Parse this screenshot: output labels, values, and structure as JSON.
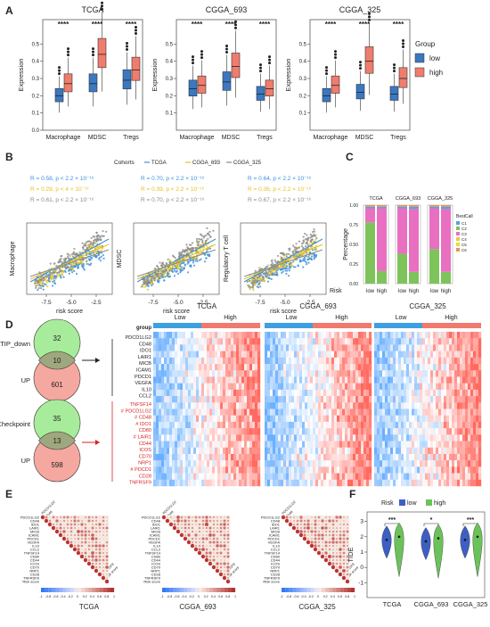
{
  "panels": {
    "A": {
      "label": "A",
      "ylabel": "Expression",
      "legend_title": "Group",
      "legend_items": [
        "low",
        "high"
      ],
      "colors": {
        "low": "#3b78c2",
        "high": "#ef7d6e"
      },
      "chart_data": [
        {
          "type": "box",
          "title": "TCGA",
          "categories": [
            "Macrophage",
            "MDSC",
            "Tregs"
          ],
          "sig": [
            "****",
            "****",
            "****"
          ],
          "yticks": [
            "0.0",
            "0.1",
            "0.2",
            "0.3",
            "0.4",
            "0.5"
          ],
          "ylim": [
            0,
            0.6
          ],
          "series": [
            {
              "name": "low",
              "median": [
                0.2,
                0.27,
                0.29
              ]
            },
            {
              "name": "high",
              "median": [
                0.27,
                0.44,
                0.35
              ]
            }
          ]
        },
        {
          "type": "box",
          "title": "CGGA_693",
          "categories": [
            "Macrophage",
            "MDSC",
            "Tregs"
          ],
          "sig": [
            "****",
            "****",
            "****"
          ],
          "yticks": [
            "0.1",
            "0.2",
            "0.3",
            "0.4",
            "0.5"
          ],
          "ylim": [
            0,
            0.6
          ],
          "series": [
            {
              "name": "low",
              "median": [
                0.24,
                0.28,
                0.21
              ]
            },
            {
              "name": "high",
              "median": [
                0.26,
                0.37,
                0.24
              ]
            }
          ]
        },
        {
          "type": "box",
          "title": "CGGA_325",
          "categories": [
            "Macrophage",
            "MDSC",
            "Tregs"
          ],
          "sig": [
            "****",
            "****",
            "****"
          ],
          "yticks": [
            "0.1",
            "0.2",
            "0.3",
            "0.4",
            "0.5"
          ],
          "ylim": [
            0,
            0.6
          ],
          "series": [
            {
              "name": "low",
              "median": [
                0.2,
                0.22,
                0.21
              ]
            },
            {
              "name": "high",
              "median": [
                0.26,
                0.4,
                0.3
              ]
            }
          ]
        }
      ]
    },
    "B": {
      "label": "B",
      "legend_title": "Cohorts",
      "legend_items": [
        "TCGA",
        "CGGA_693",
        "CGGA_325"
      ],
      "colors": {
        "TCGA": "#3b8fd9",
        "CGGA_693": "#e5c020",
        "CGGA_325": "#8a8a8a"
      },
      "xlabel": "risk score",
      "xticks": [
        "-7.5",
        "-5.0",
        "-2.5"
      ],
      "chart_data": [
        {
          "type": "scatter",
          "ylabel": "Macrophage",
          "stats": [
            "R = 0.58, p < 2.2 × 10⁻¹⁶",
            "R = 0.29, p < 4 × 10⁻¹³",
            "R = 0.61, p < 2.2 × 10⁻¹⁶"
          ]
        },
        {
          "type": "scatter",
          "ylabel": "MDSC",
          "stats": [
            "R = 0.70, p < 2.2 × 10⁻¹⁶",
            "R = 0.39, p < 2.2 × 10⁻¹⁶",
            "R = 0.70, p < 2.2 × 10⁻¹⁶"
          ]
        },
        {
          "type": "scatter",
          "ylabel": "Regulatory T cell",
          "stats": [
            "R = 0.64, p < 2.2 × 10⁻¹⁶",
            "R = 0.36, p < 2.2 × 10⁻¹⁶",
            "R = 0.67, p < 2.2 × 10⁻¹⁶"
          ]
        }
      ]
    },
    "C": {
      "label": "C",
      "ylabel": "Percentage",
      "xlabel": "Risk",
      "cohorts": [
        "TCGA",
        "CGGA_693",
        "CGGA_325"
      ],
      "xcats": [
        "low",
        "high"
      ],
      "yticks": [
        "0.00",
        "0.25",
        "0.50",
        "0.75",
        "1.00"
      ],
      "legend_title": "BestCall",
      "legend_items": [
        "C1",
        "C2",
        "C3",
        "C4",
        "C5",
        "C6"
      ],
      "chart_data": {
        "type": "bar",
        "stacked": true,
        "colors": [
          "#5aa0e0",
          "#7ec45a",
          "#e96fc1",
          "#e8c84a",
          "#e0e030",
          "#f08d5c"
        ],
        "series": [
          {
            "name": "C4",
            "values": [
              0.78,
              0.16,
              0.38,
              0.15,
              0.44,
              0.15
            ]
          },
          {
            "name": "C5",
            "values": [
              0.18,
              0.8,
              0.58,
              0.8,
              0.52,
              0.8
            ]
          },
          {
            "name": "C1",
            "values": [
              0.02,
              0.02,
              0.02,
              0.03,
              0.02,
              0.03
            ]
          },
          {
            "name": "C2",
            "values": [
              0.02,
              0.02,
              0.02,
              0.02,
              0.02,
              0.02
            ]
          }
        ]
      }
    },
    "D": {
      "label": "D",
      "venn1": {
        "top": "TIP_down",
        "bottom": "UP",
        "a": "32",
        "ab": "10",
        "b": "601"
      },
      "venn2": {
        "top": "Checkpoint",
        "bottom": "UP",
        "a": "35",
        "ab": "13",
        "b": "598"
      },
      "group_label": "group",
      "heatmaps": [
        {
          "title": "TCGA"
        },
        {
          "title": "CGGA_693"
        },
        {
          "title": "CGGA_325"
        }
      ],
      "low": "Low",
      "high": "High",
      "genes_black": [
        "PDCD1LG2",
        "CD48",
        "IDO1",
        "LAIR1",
        "MICB",
        "ICAM1",
        "PDCD1",
        "VEGFA",
        "IL10",
        "CCL2"
      ],
      "genes_red": [
        "TNFSF14",
        "# PDCD1LG2",
        "# CD48",
        "# IDO1",
        "CD80",
        "# LAIR1",
        "CD44",
        "ICOS",
        "CD70",
        "NRP1",
        "# PDCD1",
        "CD28",
        "TNFRSF9"
      ]
    },
    "E": {
      "label": "E",
      "titles": [
        "TCGA",
        "CGGA_693",
        "CGGA_325"
      ],
      "rows": [
        "PDCD1LG2",
        "CD48",
        "IDO1",
        "LAIR1",
        "MICB",
        "ICAM1",
        "PDCD1",
        "VEGFA",
        "IL10",
        "CCL2",
        "TNFSF14",
        "CD80",
        "CD44",
        "ICOS",
        "CD70",
        "NRP1",
        "CD28",
        "TNFRSF9",
        "Risk score"
      ],
      "scale": [
        "-1",
        "-0.8",
        "-0.6",
        "-0.4",
        "-0.2",
        "0",
        "0.2",
        "0.4",
        "0.6",
        "0.8",
        "1"
      ]
    },
    "F": {
      "label": "F",
      "legend_title": "Risk",
      "legend_items": [
        "low",
        "high"
      ],
      "ylabel": "TIDE",
      "categories": [
        "TCGA",
        "CGGA_693",
        "CGGA_325"
      ],
      "yticks": [
        "-1",
        "0",
        "1",
        "2",
        "3"
      ],
      "sig": [
        "***",
        "*",
        "***"
      ],
      "chart_data": {
        "type": "violin",
        "colors": {
          "low": "#3d5fc4",
          "high": "#6cc25a"
        },
        "series": [
          {
            "name": "low",
            "median": [
              1.8,
              1.7,
              1.8
            ]
          },
          {
            "name": "high",
            "median": [
              2.0,
              1.9,
              2.0
            ]
          }
        ]
      }
    }
  }
}
